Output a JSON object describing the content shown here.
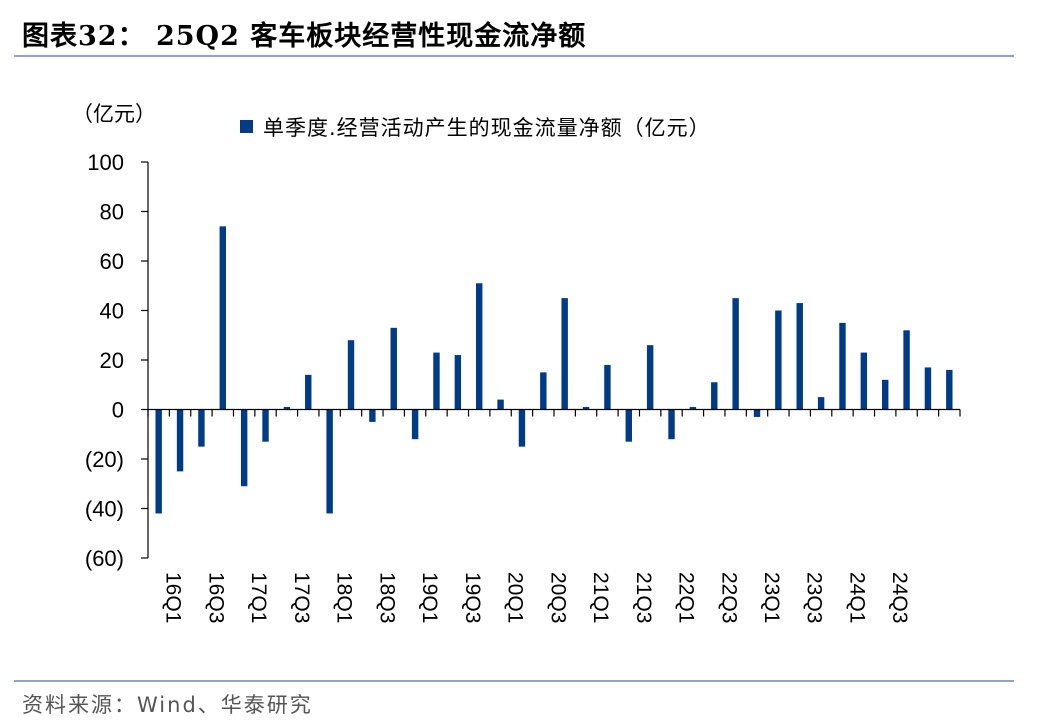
{
  "title": "图表32：  25Q2 客车板块经营性现金流净额",
  "source": "资料来源：Wind、华泰研究",
  "chart_data": {
    "type": "bar",
    "ylabel": "（亿元）",
    "ylim": [
      -60,
      100
    ],
    "yticks": [
      100,
      80,
      60,
      40,
      20,
      0,
      -20,
      -40,
      -60
    ],
    "ytick_labels": [
      "100",
      "80",
      "60",
      "40",
      "20",
      "0",
      "(20)",
      "(40)",
      "(60)"
    ],
    "legend_position": "top",
    "categories": [
      "16Q1",
      "16Q2",
      "16Q3",
      "16Q4",
      "17Q1",
      "17Q2",
      "17Q3",
      "17Q4",
      "18Q1",
      "18Q2",
      "18Q3",
      "18Q4",
      "19Q1",
      "19Q2",
      "19Q3",
      "19Q4",
      "20Q1",
      "20Q2",
      "20Q3",
      "20Q4",
      "21Q1",
      "21Q2",
      "21Q3",
      "21Q4",
      "22Q1",
      "22Q2",
      "22Q3",
      "22Q4",
      "23Q1",
      "23Q2",
      "23Q3",
      "23Q4",
      "24Q1",
      "24Q2",
      "24Q3",
      "24Q4",
      "25Q1",
      "25Q2"
    ],
    "xtick_labels": [
      "16Q1",
      "16Q3",
      "17Q1",
      "17Q3",
      "18Q1",
      "18Q3",
      "19Q1",
      "19Q3",
      "20Q1",
      "20Q3",
      "21Q1",
      "21Q3",
      "22Q1",
      "22Q3",
      "23Q1",
      "23Q3",
      "24Q1",
      "24Q3"
    ],
    "series": [
      {
        "name": "单季度.经营活动产生的现金流量净额（亿元）",
        "color": "#003b86",
        "values": [
          -42,
          -25,
          -15,
          74,
          -31,
          -13,
          1,
          14,
          -42,
          28,
          -5,
          33,
          -12,
          23,
          22,
          51,
          4,
          -15,
          15,
          45,
          1,
          18,
          -13,
          26,
          -12,
          1,
          11,
          45,
          -3,
          40,
          43,
          5,
          35,
          23,
          12,
          32,
          17,
          16
        ]
      }
    ]
  }
}
